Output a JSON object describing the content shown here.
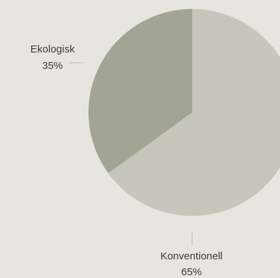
{
  "chart_data": {
    "type": "pie",
    "title": "",
    "slices": [
      {
        "name": "Konventionell",
        "value": 65,
        "label": "65%",
        "color": "#c6c6bc"
      },
      {
        "name": "Ekologisk",
        "value": 35,
        "label": "35%",
        "color": "#a2a593"
      }
    ],
    "legend": "none",
    "label_line_color": "#b9b9b1"
  }
}
